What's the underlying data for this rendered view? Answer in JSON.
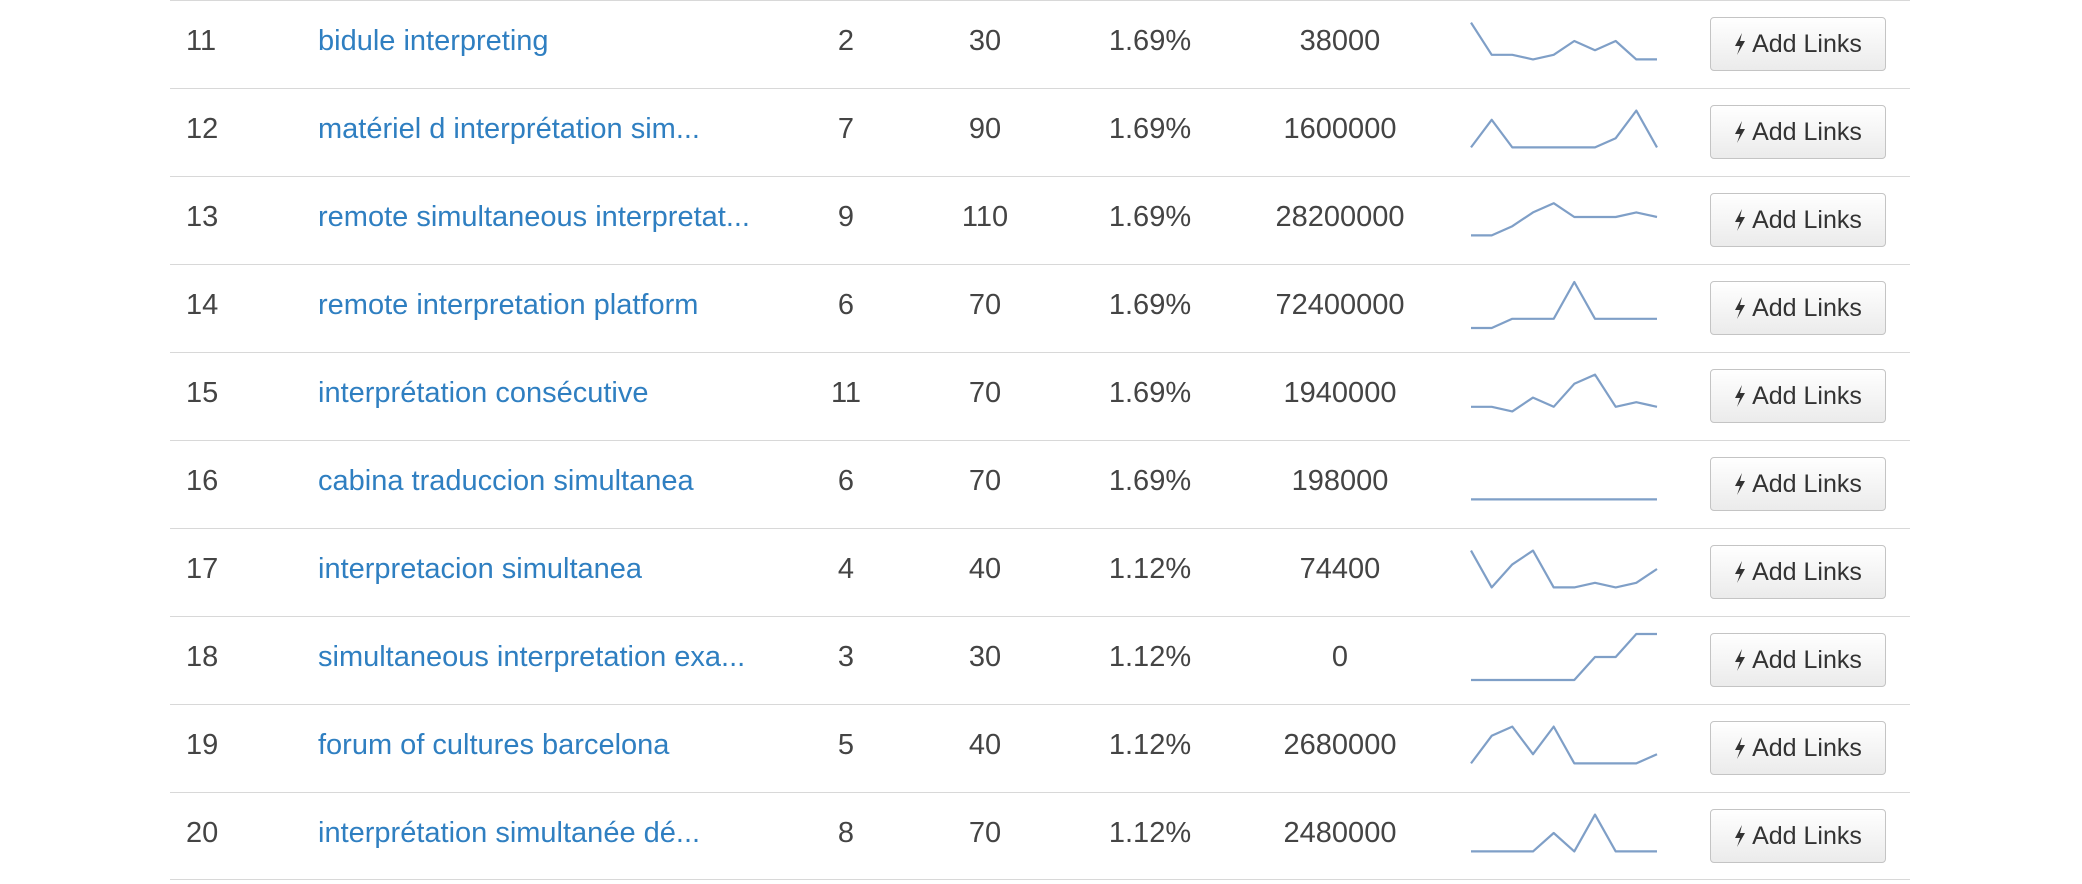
{
  "keywords_table": {
    "button_icon": "bolt-icon",
    "rows": [
      {
        "rank": "11",
        "keyword": "bidule interpreting",
        "col_a": "2",
        "col_b": "30",
        "col_c": "1.69%",
        "col_d": "38000",
        "trend": [
          9,
          2,
          2,
          1,
          2,
          5,
          3,
          5,
          1,
          1
        ],
        "button": "Add Links"
      },
      {
        "rank": "12",
        "keyword": "matériel d interprétation sim...",
        "col_a": "7",
        "col_b": "90",
        "col_c": "1.69%",
        "col_d": "1600000",
        "trend": [
          1,
          7,
          1,
          1,
          1,
          1,
          1,
          3,
          9,
          1
        ],
        "button": "Add Links"
      },
      {
        "rank": "13",
        "keyword": "remote simultaneous interpretat...",
        "col_a": "9",
        "col_b": "110",
        "col_c": "1.69%",
        "col_d": "28200000",
        "trend": [
          1,
          1,
          3,
          6,
          8,
          5,
          5,
          5,
          6,
          5
        ],
        "button": "Add Links"
      },
      {
        "rank": "14",
        "keyword": "remote interpretation platform",
        "col_a": "6",
        "col_b": "70",
        "col_c": "1.69%",
        "col_d": "72400000",
        "trend": [
          0,
          0,
          2,
          2,
          2,
          10,
          2,
          2,
          2,
          2
        ],
        "button": "Add Links"
      },
      {
        "rank": "15",
        "keyword": "interprétation consécutive",
        "col_a": "11",
        "col_b": "70",
        "col_c": "1.69%",
        "col_d": "1940000",
        "trend": [
          2,
          2,
          1,
          4,
          2,
          7,
          9,
          2,
          3,
          2
        ],
        "button": "Add Links"
      },
      {
        "rank": "16",
        "keyword": "cabina traduccion simultanea",
        "col_a": "6",
        "col_b": "70",
        "col_c": "1.69%",
        "col_d": "198000",
        "trend": [
          1,
          1,
          1,
          1,
          1,
          1,
          1,
          1,
          1,
          1
        ],
        "button": "Add Links"
      },
      {
        "rank": "17",
        "keyword": "interpretacion simultanea",
        "col_a": "4",
        "col_b": "40",
        "col_c": "1.12%",
        "col_d": "74400",
        "trend": [
          9,
          1,
          6,
          9,
          1,
          1,
          2,
          1,
          2,
          5
        ],
        "button": "Add Links"
      },
      {
        "rank": "18",
        "keyword": "simultaneous interpretation exa...",
        "col_a": "3",
        "col_b": "30",
        "col_c": "1.12%",
        "col_d": "0",
        "trend": [
          0,
          0,
          0,
          0,
          0,
          0,
          5,
          5,
          10,
          10
        ],
        "button": "Add Links"
      },
      {
        "rank": "19",
        "keyword": "forum of cultures barcelona",
        "col_a": "5",
        "col_b": "40",
        "col_c": "1.12%",
        "col_d": "2680000",
        "trend": [
          1,
          7,
          9,
          3,
          9,
          1,
          1,
          1,
          1,
          3
        ],
        "button": "Add Links"
      },
      {
        "rank": "20",
        "keyword": "interprétation simultanée dé...",
        "col_a": "8",
        "col_b": "70",
        "col_c": "1.12%",
        "col_d": "2480000",
        "trend": [
          1,
          1,
          1,
          1,
          5,
          1,
          9,
          1,
          1,
          1
        ],
        "button": "Add Links"
      }
    ]
  }
}
